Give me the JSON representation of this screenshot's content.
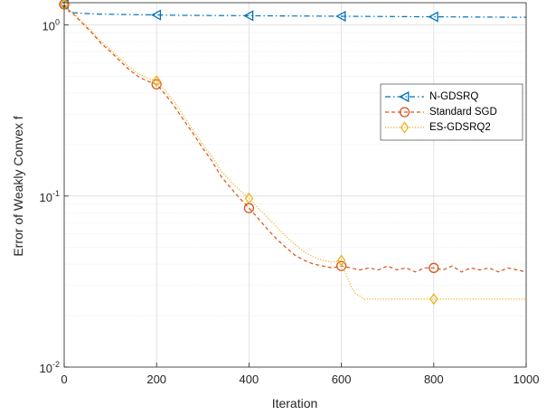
{
  "chart_data": {
    "type": "line",
    "title": "",
    "xlabel": "Iteration",
    "ylabel": "Error of Weakly Convex f",
    "xlim": [
      0,
      1000
    ],
    "ylim": [
      0.01,
      1.35
    ],
    "yscale": "log",
    "grid": true,
    "minor_grid": true,
    "legend_position": "upper-right",
    "x_ticks": [
      0,
      200,
      400,
      600,
      800,
      1000
    ],
    "y_ticks": [
      0.01,
      0.1,
      1
    ],
    "y_tick_labels": [
      {
        "base": "10",
        "exp": "-2"
      },
      {
        "base": "10",
        "exp": "-1"
      },
      {
        "base": "10",
        "exp": "0"
      }
    ],
    "series": [
      {
        "name": "N-GDSRQ",
        "color": "#0072BD",
        "dash": "dashdot",
        "marker": "triangle-left",
        "x": [
          0,
          5,
          10,
          20,
          40,
          70,
          100,
          150,
          200,
          250,
          300,
          350,
          400,
          450,
          500,
          550,
          600,
          650,
          700,
          750,
          800,
          850,
          900,
          950,
          1000
        ],
        "values": [
          1.32,
          1.24,
          1.2,
          1.18,
          1.17,
          1.16,
          1.155,
          1.15,
          1.145,
          1.14,
          1.137,
          1.135,
          1.133,
          1.131,
          1.129,
          1.127,
          1.125,
          1.123,
          1.121,
          1.119,
          1.117,
          1.115,
          1.113,
          1.111,
          1.109
        ],
        "markers_x": [
          0,
          200,
          400,
          600,
          800
        ],
        "markers_y": [
          1.32,
          1.145,
          1.133,
          1.125,
          1.117
        ]
      },
      {
        "name": "Standard SGD",
        "color": "#D95319",
        "dash": "dashed",
        "marker": "circle",
        "x": [
          0,
          10,
          20,
          40,
          60,
          80,
          100,
          120,
          140,
          160,
          180,
          200,
          220,
          240,
          260,
          280,
          300,
          320,
          340,
          360,
          380,
          400,
          420,
          440,
          460,
          480,
          500,
          520,
          540,
          560,
          580,
          600,
          620,
          640,
          660,
          680,
          700,
          720,
          740,
          760,
          780,
          800,
          820,
          840,
          860,
          880,
          900,
          920,
          940,
          960,
          980,
          1000
        ],
        "values": [
          1.32,
          1.22,
          1.16,
          1.02,
          0.9,
          0.78,
          0.7,
          0.62,
          0.55,
          0.5,
          0.47,
          0.45,
          0.39,
          0.33,
          0.275,
          0.23,
          0.19,
          0.16,
          0.13,
          0.112,
          0.097,
          0.085,
          0.074,
          0.064,
          0.056,
          0.05,
          0.045,
          0.042,
          0.04,
          0.039,
          0.038,
          0.039,
          0.038,
          0.037,
          0.038,
          0.037,
          0.039,
          0.037,
          0.038,
          0.036,
          0.038,
          0.038,
          0.037,
          0.039,
          0.036,
          0.038,
          0.037,
          0.038,
          0.036,
          0.038,
          0.037,
          0.036
        ],
        "markers_x": [
          0,
          200,
          400,
          600,
          800
        ],
        "markers_y": [
          1.32,
          0.45,
          0.085,
          0.039,
          0.038
        ]
      },
      {
        "name": "ES-GDSRQ2",
        "color": "#EDB120",
        "dash": "dotted",
        "marker": "diamond",
        "x": [
          0,
          10,
          20,
          40,
          60,
          80,
          100,
          120,
          140,
          160,
          180,
          200,
          220,
          240,
          260,
          280,
          300,
          320,
          340,
          360,
          380,
          400,
          420,
          440,
          460,
          480,
          500,
          520,
          540,
          560,
          580,
          600,
          610,
          620,
          630,
          640,
          650,
          700,
          750,
          800,
          850,
          900,
          950,
          1000
        ],
        "values": [
          1.32,
          1.23,
          1.17,
          1.04,
          0.92,
          0.8,
          0.72,
          0.64,
          0.57,
          0.52,
          0.49,
          0.47,
          0.41,
          0.35,
          0.29,
          0.24,
          0.2,
          0.17,
          0.14,
          0.122,
          0.108,
          0.097,
          0.085,
          0.075,
          0.066,
          0.058,
          0.052,
          0.047,
          0.044,
          0.042,
          0.041,
          0.042,
          0.035,
          0.03,
          0.027,
          0.026,
          0.025,
          0.025,
          0.025,
          0.025,
          0.025,
          0.025,
          0.025,
          0.025
        ],
        "markers_x": [
          0,
          200,
          400,
          600,
          800
        ],
        "markers_y": [
          1.32,
          0.47,
          0.097,
          0.042,
          0.025
        ]
      }
    ]
  }
}
